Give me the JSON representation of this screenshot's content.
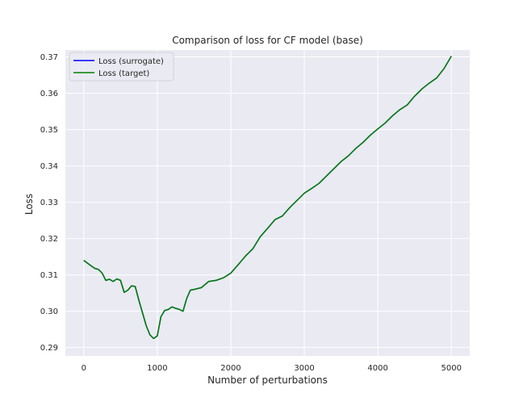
{
  "chart_data": {
    "type": "line",
    "title": "Comparison of loss for CF model (base)",
    "xlabel": "Number of perturbations",
    "ylabel": "Loss",
    "xlim": [
      -250,
      5250
    ],
    "ylim": [
      0.2877,
      0.3719
    ],
    "x_ticks": [
      0,
      1000,
      2000,
      3000,
      4000,
      5000
    ],
    "x_tick_labels": [
      "0",
      "1000",
      "2000",
      "3000",
      "4000",
      "5000"
    ],
    "y_ticks": [
      0.29,
      0.3,
      0.31,
      0.32,
      0.33,
      0.34,
      0.35,
      0.36,
      0.37
    ],
    "y_tick_labels": [
      "0.29",
      "0.30",
      "0.31",
      "0.32",
      "0.33",
      "0.34",
      "0.35",
      "0.36",
      "0.37"
    ],
    "grid": true,
    "legend_position": "top-left",
    "colors": {
      "background": "#eaeaf2",
      "grid": "#ffffff",
      "surrogate": "#0000ff",
      "target": "#008000"
    },
    "series": [
      {
        "name": "Loss (surrogate)",
        "color": "#0000ff",
        "x": [
          0,
          100,
          150,
          200,
          250,
          300,
          350,
          400,
          450,
          500,
          550,
          600,
          650,
          700,
          750,
          800,
          850,
          900,
          950,
          1000,
          1050,
          1100,
          1150,
          1200,
          1250,
          1300,
          1350,
          1400,
          1450,
          1500,
          1600,
          1700,
          1800,
          1900,
          2000,
          2100,
          2200,
          2300,
          2400,
          2500,
          2600,
          2700,
          2800,
          2900,
          3000,
          3100,
          3200,
          3300,
          3400,
          3500,
          3600,
          3700,
          3800,
          3900,
          4000,
          4100,
          4200,
          4300,
          4400,
          4500,
          4600,
          4700,
          4800,
          4900,
          5000
        ],
        "y": [
          0.314,
          0.3125,
          0.3118,
          0.3115,
          0.3105,
          0.3085,
          0.3088,
          0.3082,
          0.3089,
          0.3085,
          0.3052,
          0.3058,
          0.307,
          0.3068,
          0.303,
          0.2995,
          0.296,
          0.2935,
          0.2925,
          0.2932,
          0.2985,
          0.3002,
          0.3005,
          0.3012,
          0.3008,
          0.3005,
          0.3,
          0.3035,
          0.3058,
          0.306,
          0.3065,
          0.3082,
          0.3085,
          0.3092,
          0.3105,
          0.3128,
          0.3152,
          0.3172,
          0.3205,
          0.3228,
          0.3252,
          0.3262,
          0.3285,
          0.3305,
          0.3325,
          0.3338,
          0.3352,
          0.3372,
          0.3392,
          0.3412,
          0.3428,
          0.3448,
          0.3465,
          0.3485,
          0.3502,
          0.3518,
          0.3538,
          0.3555,
          0.3568,
          0.3592,
          0.3612,
          0.3628,
          0.3642,
          0.3668,
          0.3702
        ]
      },
      {
        "name": "Loss (target)",
        "color": "#008000",
        "x": [
          0,
          100,
          150,
          200,
          250,
          300,
          350,
          400,
          450,
          500,
          550,
          600,
          650,
          700,
          750,
          800,
          850,
          900,
          950,
          1000,
          1050,
          1100,
          1150,
          1200,
          1250,
          1300,
          1350,
          1400,
          1450,
          1500,
          1600,
          1700,
          1800,
          1900,
          2000,
          2100,
          2200,
          2300,
          2400,
          2500,
          2600,
          2700,
          2800,
          2900,
          3000,
          3100,
          3200,
          3300,
          3400,
          3500,
          3600,
          3700,
          3800,
          3900,
          4000,
          4100,
          4200,
          4300,
          4400,
          4500,
          4600,
          4700,
          4800,
          4900,
          5000
        ],
        "y": [
          0.314,
          0.3125,
          0.3118,
          0.3115,
          0.3105,
          0.3085,
          0.3088,
          0.3082,
          0.3089,
          0.3085,
          0.3052,
          0.3058,
          0.307,
          0.3068,
          0.303,
          0.2995,
          0.296,
          0.2935,
          0.2925,
          0.2932,
          0.2985,
          0.3002,
          0.3005,
          0.3012,
          0.3008,
          0.3005,
          0.3,
          0.3035,
          0.3058,
          0.306,
          0.3065,
          0.3082,
          0.3085,
          0.3092,
          0.3105,
          0.3128,
          0.3152,
          0.3172,
          0.3205,
          0.3228,
          0.3252,
          0.3262,
          0.3285,
          0.3305,
          0.3325,
          0.3338,
          0.3352,
          0.3372,
          0.3392,
          0.3412,
          0.3428,
          0.3448,
          0.3465,
          0.3485,
          0.3502,
          0.3518,
          0.3538,
          0.3555,
          0.3568,
          0.3592,
          0.3612,
          0.3628,
          0.3642,
          0.3668,
          0.3702
        ]
      }
    ]
  }
}
